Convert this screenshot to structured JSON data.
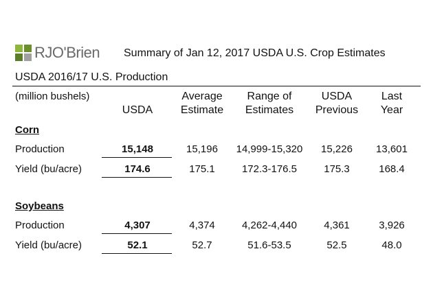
{
  "logo": "RJO'Brien",
  "title": "Summary of Jan 12, 2017 USDA U.S. Crop Estimates",
  "subtitle": "USDA 2016/17 U.S. Production",
  "table": {
    "unit": "(million bushels)",
    "columns": [
      [
        "USDA"
      ],
      [
        "Average",
        "Estimate"
      ],
      [
        "Range of",
        "Estimates"
      ],
      [
        "USDA",
        "Previous"
      ],
      [
        "Last",
        "Year"
      ]
    ],
    "sections": [
      {
        "name": "Corn",
        "rows": [
          {
            "label": "Production",
            "cells": [
              "15,148",
              "15,196",
              "14,999-15,320",
              "15,226",
              "13,601"
            ]
          },
          {
            "label": "Yield (bu/acre)",
            "cells": [
              "174.6",
              "175.1",
              "172.3-176.5",
              "175.3",
              "168.4"
            ]
          }
        ]
      },
      {
        "name": "Soybeans",
        "rows": [
          {
            "label": "Production",
            "cells": [
              "4,307",
              "4,374",
              "4,262-4,440",
              "4,361",
              "3,926"
            ]
          },
          {
            "label": "Yield (bu/acre)",
            "cells": [
              "52.1",
              "52.7",
              "51.6-53.5",
              "52.5",
              "48.0"
            ]
          }
        ]
      }
    ]
  }
}
